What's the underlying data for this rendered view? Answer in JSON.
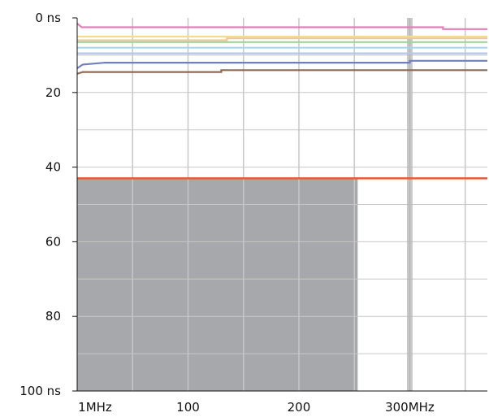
{
  "chart_data": {
    "type": "line",
    "title": "",
    "xlabel": "",
    "ylabel": "",
    "xlim": [
      0,
      370
    ],
    "ylim": [
      0,
      100
    ],
    "y_inverted": true,
    "grid": true,
    "x_ticks": [
      {
        "value": 0,
        "label": "1MHz"
      },
      {
        "value": 100,
        "label": "100"
      },
      {
        "value": 200,
        "label": "200"
      },
      {
        "value": 300,
        "label": "300MHz"
      }
    ],
    "y_ticks": [
      {
        "value": 0,
        "label": "0 ns"
      },
      {
        "value": 20,
        "label": "20"
      },
      {
        "value": 40,
        "label": "40"
      },
      {
        "value": 60,
        "label": "60"
      },
      {
        "value": 80,
        "label": "80"
      },
      {
        "value": 100,
        "label": "100 ns"
      }
    ],
    "shaded_region": {
      "x": [
        0,
        253
      ],
      "y": [
        43,
        100
      ],
      "color": "#a7a8ab"
    },
    "threshold_line": {
      "value": 43,
      "color": "#e8593a"
    },
    "colors": {
      "grid": "#c7c7c7",
      "grid_major": "#b3b3b3"
    },
    "series": [
      {
        "color": "#e57fb6",
        "points": [
          [
            0,
            1.5
          ],
          [
            4,
            2.5
          ],
          [
            330,
            2.5
          ],
          [
            330,
            3
          ],
          [
            370,
            3
          ]
        ]
      },
      {
        "color": "#f5dc8a",
        "points": [
          [
            0,
            5
          ],
          [
            370,
            5
          ]
        ]
      },
      {
        "color": "#f0c79a",
        "points": [
          [
            0,
            6
          ],
          [
            135,
            6
          ],
          [
            135,
            5.5
          ],
          [
            370,
            5.5
          ]
        ]
      },
      {
        "color": "#9fd49a",
        "points": [
          [
            0,
            6.5
          ],
          [
            370,
            6.5
          ]
        ]
      },
      {
        "color": "#a8d6ef",
        "points": [
          [
            0,
            8
          ],
          [
            370,
            8
          ]
        ]
      },
      {
        "color": "#b6c6e8",
        "points": [
          [
            0,
            9.5
          ],
          [
            370,
            9.5
          ]
        ]
      },
      {
        "color": "#6f7fbf",
        "points": [
          [
            0,
            13.5
          ],
          [
            5,
            12.5
          ],
          [
            25,
            12
          ],
          [
            55,
            12
          ],
          [
            300,
            12
          ],
          [
            300,
            11.5
          ],
          [
            370,
            11.5
          ]
        ]
      },
      {
        "color": "#8e6b57",
        "points": [
          [
            0,
            15
          ],
          [
            5,
            14.5
          ],
          [
            130,
            14.5
          ],
          [
            130,
            14
          ],
          [
            370,
            14
          ]
        ]
      }
    ]
  }
}
